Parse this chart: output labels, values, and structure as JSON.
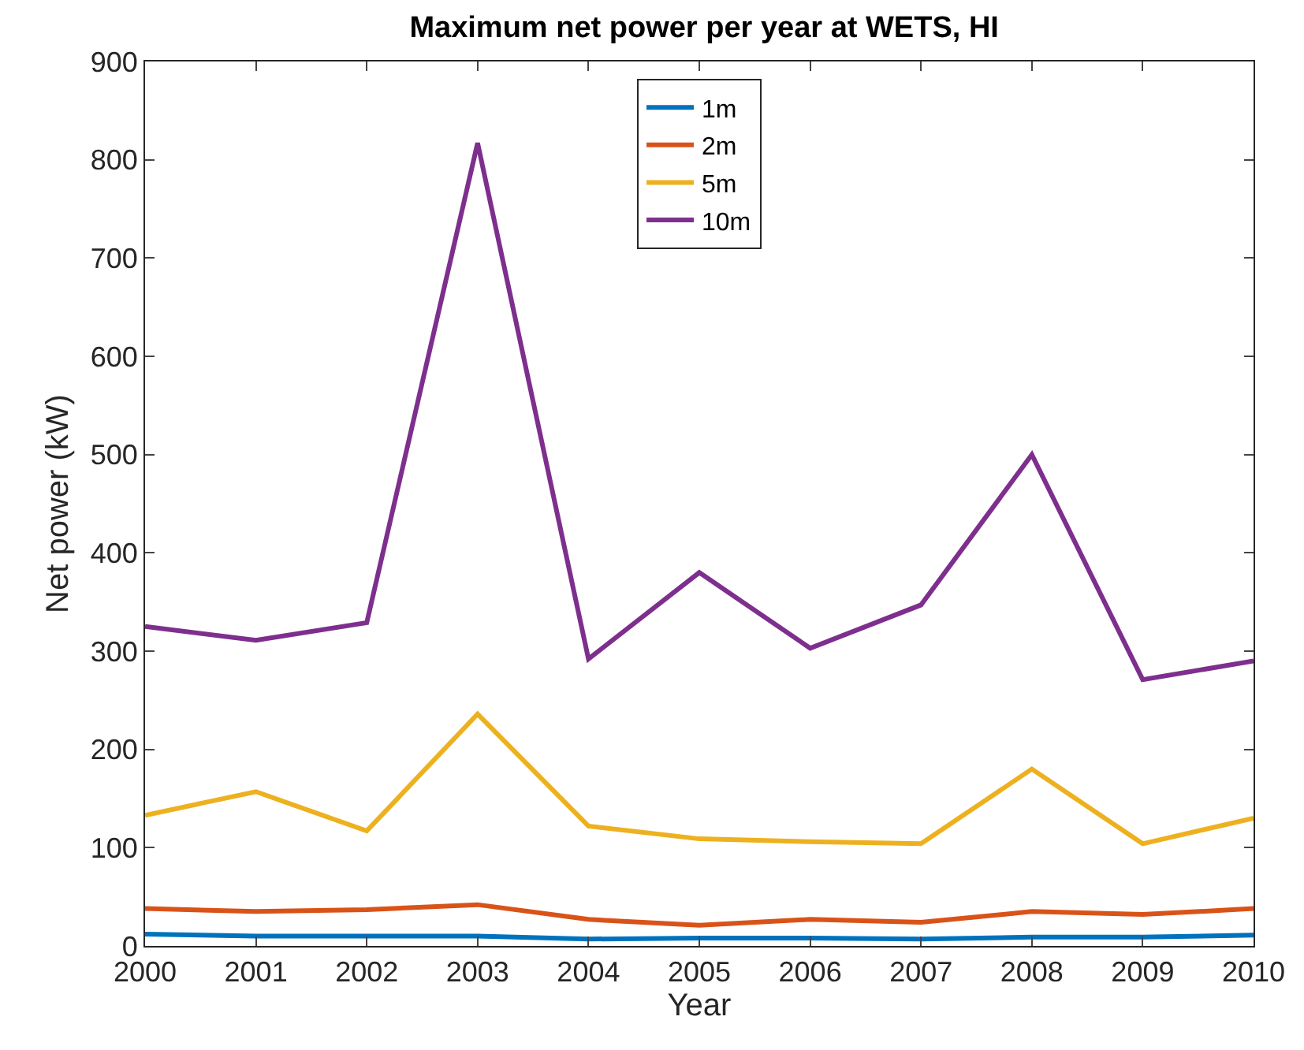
{
  "chart_data": {
    "type": "line",
    "title": "Maximum net power per year at WETS, HI",
    "xlabel": "Year",
    "ylabel": "Net power (kW)",
    "x": [
      2000,
      2001,
      2002,
      2003,
      2004,
      2005,
      2006,
      2007,
      2008,
      2009,
      2010
    ],
    "series": [
      {
        "name": "1m",
        "color": "#0072bd",
        "values": [
          12,
          10,
          10,
          10,
          7,
          8,
          8,
          7,
          9,
          9,
          11
        ]
      },
      {
        "name": "2m",
        "color": "#d95319",
        "values": [
          38,
          35,
          37,
          42,
          27,
          21,
          27,
          24,
          35,
          32,
          38
        ]
      },
      {
        "name": "5m",
        "color": "#edb120",
        "values": [
          133,
          157,
          117,
          236,
          122,
          109,
          106,
          104,
          180,
          104,
          130
        ]
      },
      {
        "name": "10m",
        "color": "#7e2f8e",
        "values": [
          325,
          311,
          329,
          817,
          292,
          380,
          303,
          347,
          500,
          271,
          290
        ]
      }
    ],
    "xlim": [
      2000,
      2010
    ],
    "xticks": [
      2000,
      2001,
      2002,
      2003,
      2004,
      2005,
      2006,
      2007,
      2008,
      2009,
      2010
    ],
    "ylim": [
      0,
      900
    ],
    "yticks": [
      0,
      100,
      200,
      300,
      400,
      500,
      600,
      700,
      800,
      900
    ],
    "legend": "top"
  }
}
